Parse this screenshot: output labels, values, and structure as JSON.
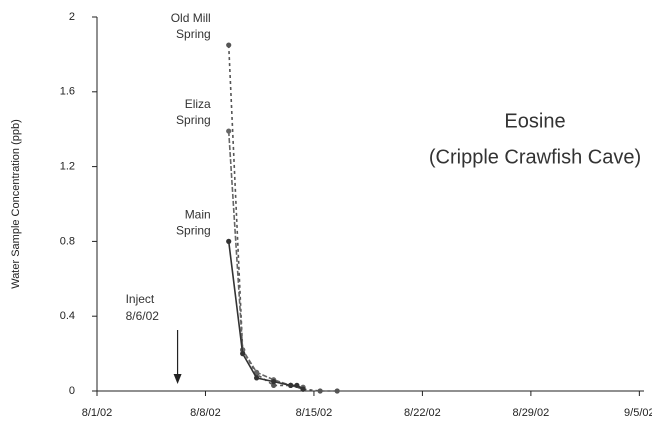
{
  "chart_data": {
    "type": "line",
    "title": "Eosine",
    "subtitle": "(Cripple Crawfish Cave)",
    "y_label": "Water Sample Concentration (ppb)",
    "xlim": [
      1,
      36.3
    ],
    "xticks": [
      {
        "value": 1,
        "label": "8/1/02"
      },
      {
        "value": 8,
        "label": "8/8/02"
      },
      {
        "value": 15,
        "label": "8/15/02"
      },
      {
        "value": 22,
        "label": "8/22/02"
      },
      {
        "value": 29,
        "label": "8/29/02"
      },
      {
        "value": 36,
        "label": "9/5/02"
      }
    ],
    "ylim": [
      0,
      2
    ],
    "yticks": [
      0,
      0.4,
      0.8,
      1.2,
      1.6,
      2
    ],
    "series": [
      {
        "label": [
          "Old Mill",
          "Spring"
        ],
        "color": "#555",
        "dash": "3,3",
        "x": [
          9.5,
          10.4,
          11.3,
          12.4,
          13.5,
          14.3,
          15.4,
          16.5
        ],
        "values": [
          1.85,
          0.22,
          0.09,
          0.03,
          0.03,
          0.01,
          0,
          0
        ]
      },
      {
        "label": [
          "Eliza",
          "Spring"
        ],
        "color": "#666",
        "dash": "5,2",
        "x": [
          9.5,
          10.4,
          11.3,
          12.4,
          13.5,
          14.3
        ],
        "values": [
          1.39,
          0.22,
          0.1,
          0.06,
          0.03,
          0.02
        ]
      },
      {
        "label": [
          "Main",
          "Spring"
        ],
        "color": "#333",
        "dash": "none",
        "x": [
          9.5,
          10.4,
          11.3,
          12.4,
          13.5,
          13.9,
          14.3
        ],
        "values": [
          0.8,
          0.2,
          0.07,
          0.05,
          0.03,
          0.03,
          0.01
        ]
      }
    ],
    "inject": {
      "lines": [
        "Inject",
        "8/6/02"
      ],
      "x": 6.2
    }
  }
}
